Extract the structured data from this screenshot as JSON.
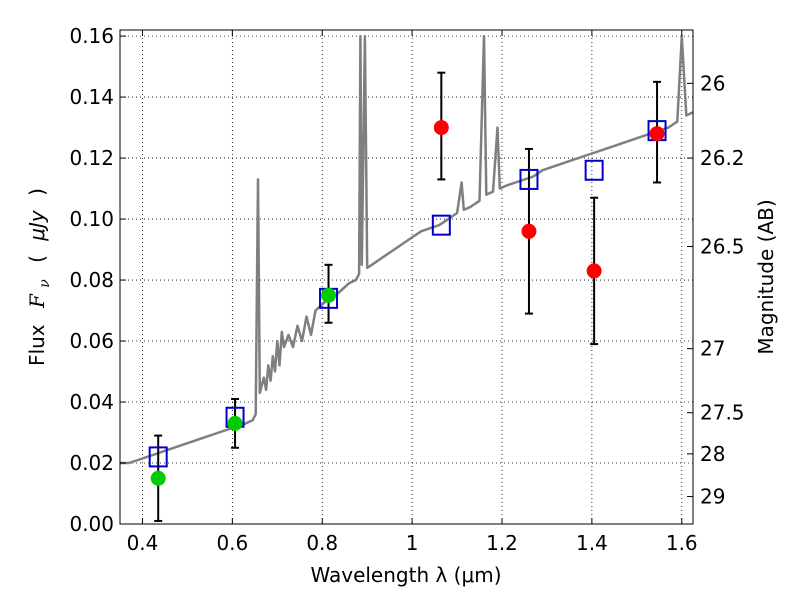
{
  "chart_data": {
    "type": "scatter",
    "xlabel": "Wavelength  λ (μm)",
    "ylabel_parts": [
      "Flux",
      "F",
      "ν",
      "(",
      "μJy",
      ")"
    ],
    "y2label": "Magnitude (AB)",
    "xlim": [
      0.35,
      1.625
    ],
    "ylim": [
      0.0,
      0.162
    ],
    "grid": true,
    "x_ticks": [
      {
        "value": 0.4,
        "label": "0.4"
      },
      {
        "value": 0.6,
        "label": "0.6"
      },
      {
        "value": 0.8,
        "label": "0.8"
      },
      {
        "value": 1.0,
        "label": "1"
      },
      {
        "value": 1.2,
        "label": "1.2"
      },
      {
        "value": 1.4,
        "label": "1.4"
      },
      {
        "value": 1.6,
        "label": "1.6"
      }
    ],
    "y_ticks": [
      {
        "value": 0.0,
        "label": "0.00"
      },
      {
        "value": 0.02,
        "label": "0.02"
      },
      {
        "value": 0.04,
        "label": "0.04"
      },
      {
        "value": 0.06,
        "label": "0.06"
      },
      {
        "value": 0.08,
        "label": "0.08"
      },
      {
        "value": 0.1,
        "label": "0.10"
      },
      {
        "value": 0.12,
        "label": "0.12"
      },
      {
        "value": 0.14,
        "label": "0.14"
      },
      {
        "value": 0.16,
        "label": "0.16"
      }
    ],
    "y2_ticks": [
      {
        "flux": 0.1445,
        "label": "26"
      },
      {
        "flux": 0.12,
        "label": "26.2"
      },
      {
        "flux": 0.091,
        "label": "26.5"
      },
      {
        "flux": 0.0575,
        "label": "27"
      },
      {
        "flux": 0.0365,
        "label": "27.5"
      },
      {
        "flux": 0.023,
        "label": "28"
      },
      {
        "flux": 0.009,
        "label": "29"
      }
    ],
    "colors": {
      "model": "#7f7f7f",
      "synthetic": "#0000cc",
      "detection": "#00cc00",
      "upper": "#ff0000",
      "errorbar": "#000000"
    },
    "series": [
      {
        "name": "model-spectrum",
        "kind": "line",
        "points": [
          [
            0.35,
            0.02
          ],
          [
            0.37,
            0.02
          ],
          [
            0.39,
            0.021
          ],
          [
            0.41,
            0.022
          ],
          [
            0.43,
            0.023
          ],
          [
            0.45,
            0.024
          ],
          [
            0.47,
            0.025
          ],
          [
            0.49,
            0.026
          ],
          [
            0.51,
            0.027
          ],
          [
            0.53,
            0.028
          ],
          [
            0.55,
            0.029
          ],
          [
            0.57,
            0.03
          ],
          [
            0.59,
            0.031
          ],
          [
            0.61,
            0.032
          ],
          [
            0.63,
            0.033
          ],
          [
            0.645,
            0.034
          ],
          [
            0.652,
            0.036
          ],
          [
            0.657,
            0.113
          ],
          [
            0.661,
            0.043
          ],
          [
            0.67,
            0.048
          ],
          [
            0.675,
            0.044
          ],
          [
            0.68,
            0.052
          ],
          [
            0.685,
            0.047
          ],
          [
            0.69,
            0.055
          ],
          [
            0.695,
            0.05
          ],
          [
            0.7,
            0.06
          ],
          [
            0.705,
            0.052
          ],
          [
            0.71,
            0.063
          ],
          [
            0.715,
            0.058
          ],
          [
            0.725,
            0.062
          ],
          [
            0.735,
            0.058
          ],
          [
            0.745,
            0.065
          ],
          [
            0.755,
            0.06
          ],
          [
            0.765,
            0.068
          ],
          [
            0.775,
            0.062
          ],
          [
            0.785,
            0.07
          ],
          [
            0.8,
            0.072
          ],
          [
            0.815,
            0.074
          ],
          [
            0.83,
            0.075
          ],
          [
            0.845,
            0.077
          ],
          [
            0.86,
            0.079
          ],
          [
            0.875,
            0.08
          ],
          [
            0.882,
            0.082
          ],
          [
            0.885,
            0.16
          ],
          [
            0.888,
            0.085
          ],
          [
            0.895,
            0.16
          ],
          [
            0.9,
            0.084
          ],
          [
            0.92,
            0.086
          ],
          [
            0.94,
            0.088
          ],
          [
            0.96,
            0.09
          ],
          [
            0.98,
            0.092
          ],
          [
            1.0,
            0.094
          ],
          [
            1.02,
            0.096
          ],
          [
            1.04,
            0.097
          ],
          [
            1.06,
            0.098
          ],
          [
            1.08,
            0.1
          ],
          [
            1.1,
            0.102
          ],
          [
            1.11,
            0.112
          ],
          [
            1.115,
            0.103
          ],
          [
            1.13,
            0.104
          ],
          [
            1.15,
            0.106
          ],
          [
            1.16,
            0.16
          ],
          [
            1.165,
            0.108
          ],
          [
            1.18,
            0.109
          ],
          [
            1.19,
            0.13
          ],
          [
            1.195,
            0.11
          ],
          [
            1.21,
            0.111
          ],
          [
            1.23,
            0.112
          ],
          [
            1.25,
            0.113
          ],
          [
            1.27,
            0.114
          ],
          [
            1.29,
            0.116
          ],
          [
            1.31,
            0.117
          ],
          [
            1.33,
            0.118
          ],
          [
            1.35,
            0.119
          ],
          [
            1.37,
            0.12
          ],
          [
            1.39,
            0.121
          ],
          [
            1.41,
            0.122
          ],
          [
            1.43,
            0.123
          ],
          [
            1.45,
            0.124
          ],
          [
            1.47,
            0.125
          ],
          [
            1.49,
            0.126
          ],
          [
            1.51,
            0.127
          ],
          [
            1.53,
            0.128
          ],
          [
            1.55,
            0.129
          ],
          [
            1.57,
            0.13
          ],
          [
            1.59,
            0.132
          ],
          [
            1.6,
            0.16
          ],
          [
            1.61,
            0.134
          ],
          [
            1.625,
            0.135
          ]
        ]
      },
      {
        "name": "model-photometry",
        "kind": "open-square",
        "points": [
          [
            0.435,
            0.022
          ],
          [
            0.606,
            0.035
          ],
          [
            0.814,
            0.074
          ],
          [
            1.065,
            0.098
          ],
          [
            1.26,
            0.113
          ],
          [
            1.405,
            0.116
          ],
          [
            1.545,
            0.129
          ]
        ]
      },
      {
        "name": "detections",
        "kind": "filled-circle",
        "points": [
          {
            "x": 0.435,
            "y": 0.015,
            "err_low": 0.001,
            "err_high": 0.029
          },
          {
            "x": 0.606,
            "y": 0.033,
            "err_low": 0.025,
            "err_high": 0.041
          },
          {
            "x": 0.814,
            "y": 0.075,
            "err_low": 0.066,
            "err_high": 0.085
          }
        ]
      },
      {
        "name": "nir-points",
        "kind": "filled-circle",
        "points": [
          {
            "x": 1.065,
            "y": 0.13,
            "err_low": 0.113,
            "err_high": 0.148
          },
          {
            "x": 1.26,
            "y": 0.096,
            "err_low": 0.069,
            "err_high": 0.123
          },
          {
            "x": 1.405,
            "y": 0.083,
            "err_low": 0.059,
            "err_high": 0.107
          },
          {
            "x": 1.545,
            "y": 0.128,
            "err_low": 0.112,
            "err_high": 0.145
          }
        ]
      }
    ]
  }
}
